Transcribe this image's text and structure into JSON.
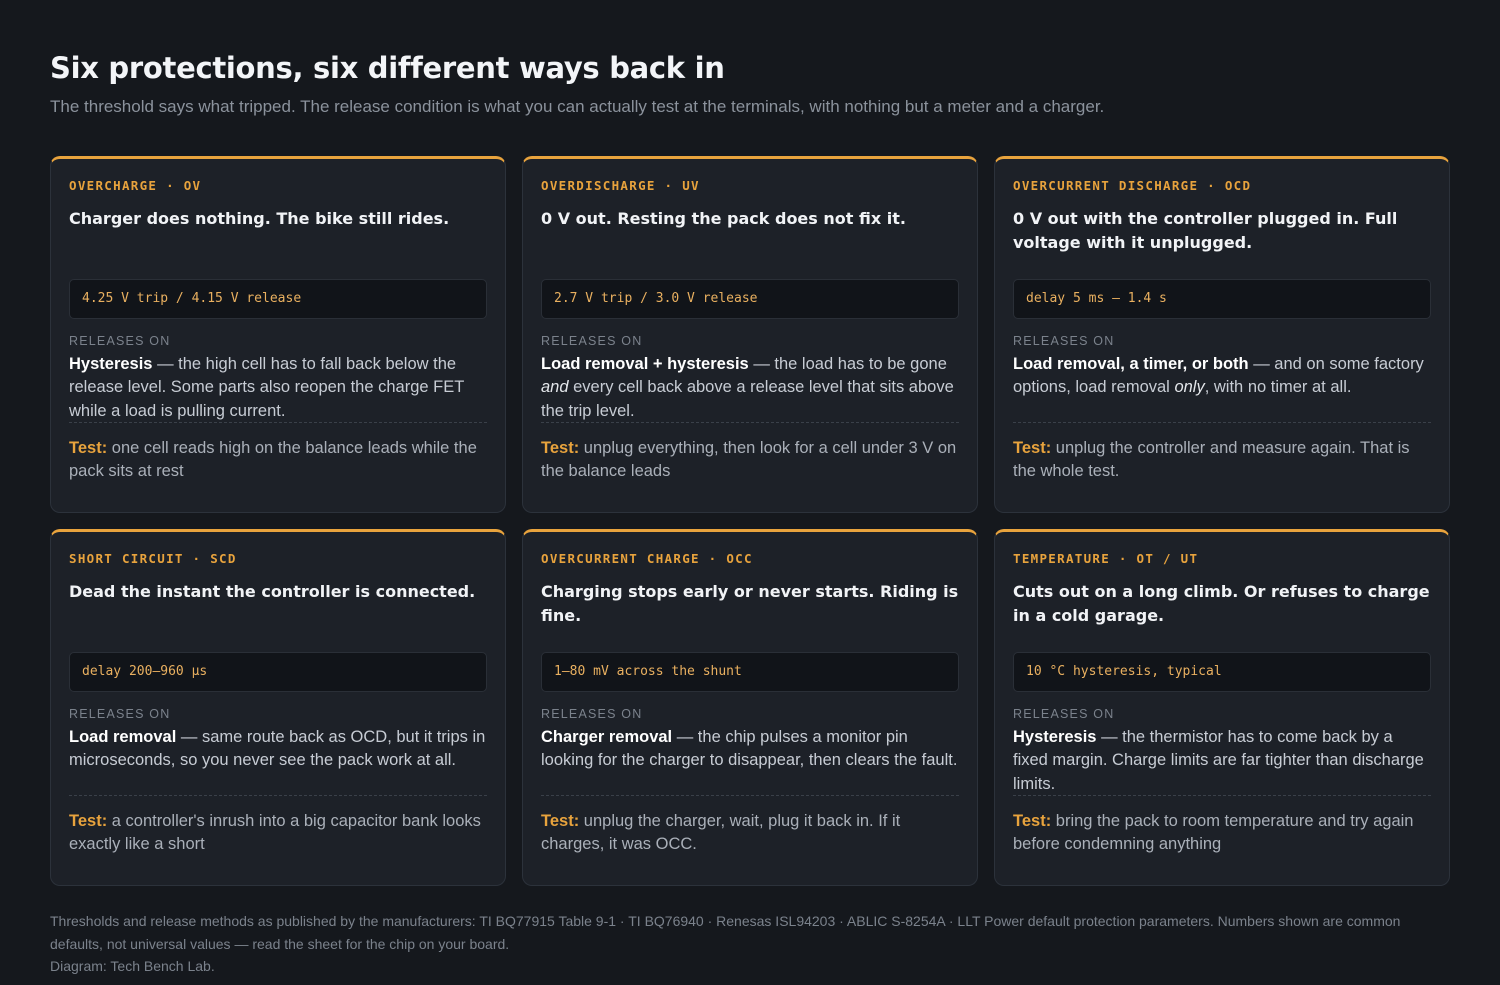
{
  "page": {
    "title": "Six protections, six different ways back in",
    "subtitle": "The threshold says what tripped. The release condition is what you can actually test at the terminals, with nothing but a meter and a charger."
  },
  "accent_color": "#e8a33d",
  "releases_label": "RELEASES ON",
  "test_label": "Test:",
  "cards": [
    {
      "eyebrow": "OVERCHARGE · OV",
      "headline": "Charger does nothing. The bike still rides.",
      "spec": "4.25 V trip / 4.15 V release",
      "release_bold": "Hysteresis",
      "release_text": " — the high cell has to fall back below the release level. Some parts also reopen the charge FET while a load is pulling current.",
      "test_text": " one cell reads high on the balance leads while the pack sits at rest"
    },
    {
      "eyebrow": "OVERDISCHARGE · UV",
      "headline": "0 V out. Resting the pack does not fix it.",
      "spec": "2.7 V trip / 3.0 V release",
      "release_bold": "Load removal + hysteresis",
      "release_text_a": " — the load has to be gone ",
      "release_italic": "and",
      "release_text_b": " every cell back above a release level that sits above the trip level.",
      "test_text": " unplug everything, then look for a cell under 3 V on the balance leads"
    },
    {
      "eyebrow": "OVERCURRENT DISCHARGE · OCD",
      "headline": "0 V out with the controller plugged in. Full voltage with it unplugged.",
      "spec": "delay 5 ms – 1.4 s",
      "release_bold": "Load removal, a timer, or both",
      "release_text_a": " — and on some factory options, load removal ",
      "release_italic": "only",
      "release_text_b": ", with no timer at all.",
      "test_text": " unplug the controller and measure again. That is the whole test."
    },
    {
      "eyebrow": "SHORT CIRCUIT · SCD",
      "headline": "Dead the instant the controller is connected.",
      "spec": "delay 200–960 µs",
      "release_bold": "Load removal",
      "release_text": " — same route back as OCD, but it trips in microseconds, so you never see the pack work at all.",
      "test_text": " a controller's inrush into a big capacitor bank looks exactly like a short"
    },
    {
      "eyebrow": "OVERCURRENT CHARGE · OCC",
      "headline": "Charging stops early or never starts. Riding is fine.",
      "spec": "1–80 mV across the shunt",
      "release_bold": "Charger removal",
      "release_text": " — the chip pulses a monitor pin looking for the charger to disappear, then clears the fault.",
      "test_text": " unplug the charger, wait, plug it back in. If it charges, it was OCC."
    },
    {
      "eyebrow": "TEMPERATURE · OT / UT",
      "headline": "Cuts out on a long climb. Or refuses to charge in a cold garage.",
      "spec": "10 °C hysteresis, typical",
      "release_bold": "Hysteresis",
      "release_text": " — the thermistor has to come back by a fixed margin. Charge limits are far tighter than discharge limits.",
      "test_text": " bring the pack to room temperature and try again before condemning anything"
    }
  ],
  "footer": {
    "sources": "Thresholds and release methods as published by the manufacturers: TI BQ77915 Table 9-1 · TI BQ76940 · Renesas ISL94203 · ABLIC S-8254A · LLT Power default protection parameters. Numbers shown are common defaults, not universal values — read the sheet for the chip on your board.",
    "credit": "Diagram: Tech Bench Lab."
  }
}
